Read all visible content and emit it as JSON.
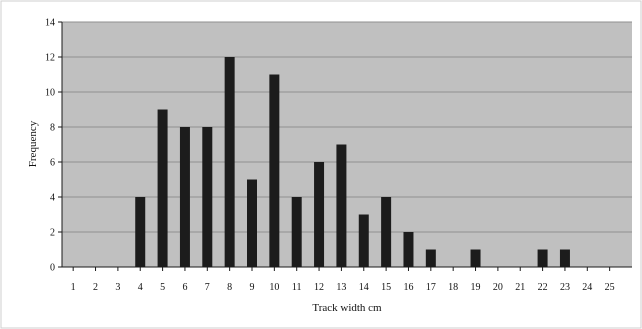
{
  "chart_data": {
    "type": "bar",
    "categories": [
      "1",
      "2",
      "3",
      "4",
      "5",
      "6",
      "7",
      "8",
      "9",
      "10",
      "11",
      "12",
      "13",
      "14",
      "15",
      "16",
      "17",
      "18",
      "19",
      "20",
      "21",
      "22",
      "23",
      "24",
      "25"
    ],
    "values": [
      0,
      0,
      0,
      4,
      9,
      8,
      8,
      12,
      5,
      11,
      4,
      6,
      7,
      3,
      4,
      2,
      1,
      0,
      1,
      0,
      0,
      1,
      1,
      0,
      0
    ],
    "title": "",
    "xlabel": "Track width cm",
    "ylabel": "Frequency",
    "ylim": [
      0,
      14
    ],
    "yticks": [
      0,
      2,
      4,
      6,
      8,
      10,
      12,
      14
    ],
    "grid": true,
    "legend": "none",
    "colors": {
      "plot_background": "#c0c0c0",
      "bar": "#1c1c1c",
      "gridline": "#8f8f8f",
      "frame_border": "#cfcfcf"
    }
  }
}
